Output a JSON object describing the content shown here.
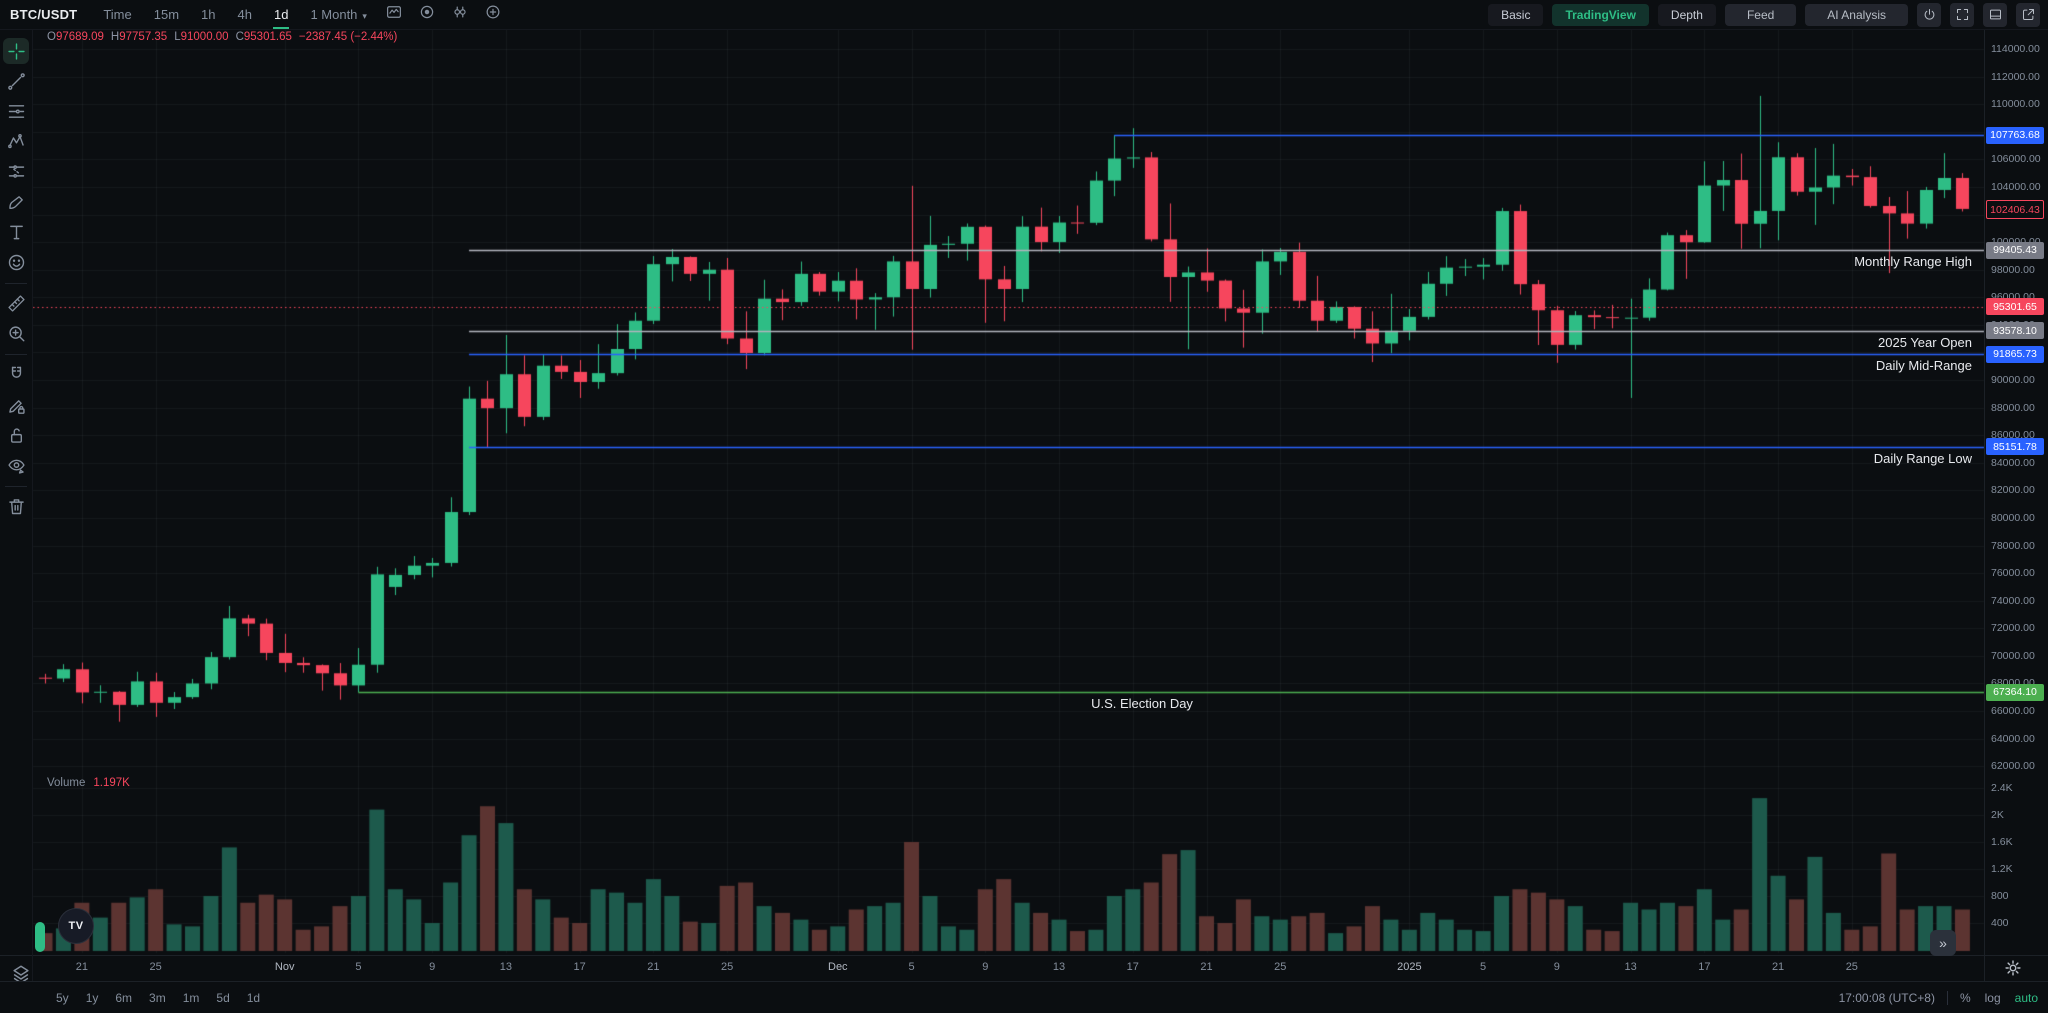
{
  "topbar": {
    "symbol": "BTC/USDT",
    "timeframes": [
      "Time",
      "15m",
      "1h",
      "4h",
      "1d",
      "1 Month"
    ],
    "active_timeframe": "1d",
    "tool_icons": [
      "template-icon",
      "target-icon",
      "candles-icon",
      "plus-circle-icon"
    ],
    "view_tabs": [
      "Basic",
      "TradingView",
      "Depth"
    ],
    "active_view": "TradingView",
    "buttons": [
      "Feed",
      "AI Analysis"
    ],
    "window_icons": [
      "power-icon",
      "fullscreen-icon",
      "bottom-panel-icon",
      "share-icon"
    ]
  },
  "legend": {
    "ohlc": [
      {
        "k": "O",
        "v": "97689.09"
      },
      {
        "k": "H",
        "v": "97757.35"
      },
      {
        "k": "L",
        "v": "91000.00"
      },
      {
        "k": "C",
        "v": "95301.65"
      }
    ],
    "change": "−2387.45 (−2.44%)"
  },
  "volume_legend": {
    "label": "Volume",
    "value": "1.197K"
  },
  "sidebar": {
    "tools": [
      "crosshair-icon",
      "trendline-icon",
      "fib-retracement-icon",
      "xabcd-pattern-icon",
      "projection-icon",
      "brush-icon",
      "text-icon",
      "emoji-icon",
      "divider",
      "ruler-icon",
      "zoom-in-icon",
      "divider",
      "magnet-icon",
      "draw-lock-icon",
      "lock-icon",
      "hide-drawings-icon",
      "divider",
      "trash-icon"
    ],
    "active_tool": "crosshair-icon"
  },
  "chart_data": {
    "type": "candlestick",
    "title": "BTC/USDT 1d candlestick chart with volume",
    "symbol": "BTC/USDT",
    "interval": "1d",
    "up_color": "#2EBD85",
    "down_color": "#F6465D",
    "vol_up_color": "#1D5A4C",
    "vol_down_color": "#5C3431",
    "y_axis": {
      "min": 62000,
      "max": 114000,
      "step": 2000,
      "scale": "linear",
      "side": "right"
    },
    "volume_axis_ticks": [
      400,
      800,
      1200,
      1600,
      2000,
      2400
    ],
    "grid": true,
    "time_ticks": [
      {
        "i": 2,
        "l": "21"
      },
      {
        "i": 6,
        "l": "25"
      },
      {
        "i": 13,
        "l": "Nov",
        "month": true
      },
      {
        "i": 17,
        "l": "5"
      },
      {
        "i": 21,
        "l": "9"
      },
      {
        "i": 25,
        "l": "13"
      },
      {
        "i": 29,
        "l": "17"
      },
      {
        "i": 33,
        "l": "21"
      },
      {
        "i": 37,
        "l": "25"
      },
      {
        "i": 43,
        "l": "Dec",
        "month": true
      },
      {
        "i": 47,
        "l": "5"
      },
      {
        "i": 51,
        "l": "9"
      },
      {
        "i": 55,
        "l": "13"
      },
      {
        "i": 59,
        "l": "17"
      },
      {
        "i": 63,
        "l": "21"
      },
      {
        "i": 67,
        "l": "25"
      },
      {
        "i": 74,
        "l": "2025",
        "month": true
      },
      {
        "i": 78,
        "l": "5"
      },
      {
        "i": 82,
        "l": "9"
      },
      {
        "i": 86,
        "l": "13"
      },
      {
        "i": 90,
        "l": "17"
      },
      {
        "i": 94,
        "l": "21"
      },
      {
        "i": 98,
        "l": "25"
      }
    ],
    "candles": [
      [
        68420,
        68700,
        68000,
        68360
      ],
      [
        68360,
        69400,
        68100,
        69030
      ],
      [
        69030,
        69520,
        66560,
        67350
      ],
      [
        67350,
        67870,
        66600,
        67400
      ],
      [
        67400,
        67450,
        65230,
        66450
      ],
      [
        66450,
        68850,
        66300,
        68150
      ],
      [
        68150,
        68780,
        65580,
        66600
      ],
      [
        66600,
        67380,
        66150,
        67010
      ],
      [
        67010,
        68330,
        66880,
        68000
      ],
      [
        68000,
        70280,
        67580,
        69910
      ],
      [
        69910,
        73620,
        69740,
        72720
      ],
      [
        72720,
        72980,
        71430,
        72340
      ],
      [
        72340,
        72700,
        69690,
        70215
      ],
      [
        70215,
        71600,
        68820,
        69490
      ],
      [
        69490,
        69900,
        68780,
        69330
      ],
      [
        69330,
        69380,
        67480,
        68740
      ],
      [
        68740,
        69480,
        66830,
        67860
      ],
      [
        67860,
        70570,
        67360,
        69360
      ],
      [
        69360,
        76460,
        68780,
        75910
      ],
      [
        75000,
        76350,
        74410,
        75870
      ],
      [
        75870,
        77240,
        75560,
        76540
      ],
      [
        76540,
        77100,
        75690,
        76740
      ],
      [
        76740,
        81500,
        76480,
        80430
      ],
      [
        80430,
        89530,
        80210,
        88650
      ],
      [
        88650,
        89940,
        85070,
        87960
      ],
      [
        87960,
        93265,
        86140,
        90420
      ],
      [
        90420,
        91790,
        86650,
        87330
      ],
      [
        87330,
        91850,
        87100,
        91040
      ],
      [
        91040,
        91780,
        90080,
        90590
      ],
      [
        90590,
        91450,
        88700,
        89860
      ],
      [
        89860,
        92600,
        89370,
        90500
      ],
      [
        90500,
        94050,
        90330,
        92250
      ],
      [
        92250,
        94900,
        91500,
        94300
      ],
      [
        94300,
        98990,
        94060,
        98400
      ],
      [
        98400,
        99500,
        97150,
        98920
      ],
      [
        98920,
        98960,
        97180,
        97700
      ],
      [
        97700,
        98560,
        95750,
        98000
      ],
      [
        98000,
        98850,
        92600,
        93010
      ],
      [
        93010,
        94980,
        90790,
        91960
      ],
      [
        91960,
        97270,
        91790,
        95900
      ],
      [
        95900,
        96570,
        94340,
        95650
      ],
      [
        95650,
        98590,
        95380,
        97700
      ],
      [
        97700,
        97830,
        96120,
        96410
      ],
      [
        96410,
        97830,
        95700,
        97200
      ],
      [
        97200,
        98100,
        94400,
        95840
      ],
      [
        95840,
        96300,
        93640,
        96000
      ],
      [
        96000,
        99000,
        94600,
        98600
      ],
      [
        98600,
        104080,
        92200,
        96600
      ],
      [
        96600,
        101900,
        95980,
        99800
      ],
      [
        99800,
        100440,
        98850,
        99880
      ],
      [
        99880,
        101350,
        98660,
        101110
      ],
      [
        101110,
        101200,
        94150,
        97300
      ],
      [
        97300,
        98270,
        94260,
        96600
      ],
      [
        96600,
        101880,
        95650,
        101120
      ],
      [
        101120,
        102500,
        99330,
        100000
      ],
      [
        100000,
        101890,
        99210,
        101420
      ],
      [
        101420,
        102650,
        100600,
        101400
      ],
      [
        101400,
        105120,
        101230,
        104460
      ],
      [
        104460,
        107763,
        103330,
        106060
      ],
      [
        106060,
        108260,
        105380,
        106140
      ],
      [
        106140,
        106530,
        100050,
        100200
      ],
      [
        100200,
        102800,
        95670,
        97470
      ],
      [
        97470,
        98230,
        92230,
        97800
      ],
      [
        97800,
        99540,
        96400,
        97210
      ],
      [
        97210,
        97290,
        94250,
        95190
      ],
      [
        95190,
        96540,
        92350,
        94880
      ],
      [
        94880,
        99470,
        93360,
        98600
      ],
      [
        98600,
        99570,
        97620,
        99290
      ],
      [
        99290,
        99960,
        95230,
        95750
      ],
      [
        95750,
        97550,
        93510,
        94300
      ],
      [
        94300,
        95700,
        94140,
        95300
      ],
      [
        95300,
        95340,
        93010,
        93720
      ],
      [
        93720,
        94980,
        91300,
        92650
      ],
      [
        92650,
        96250,
        91950,
        93570
      ],
      [
        93570,
        95150,
        92880,
        94580
      ],
      [
        94580,
        97840,
        94390,
        96980
      ],
      [
        96980,
        98980,
        96100,
        98150
      ],
      [
        98150,
        98770,
        97540,
        98220
      ],
      [
        98220,
        98840,
        97290,
        98360
      ],
      [
        98360,
        102480,
        97920,
        102250
      ],
      [
        102250,
        102720,
        96200,
        96950
      ],
      [
        96950,
        97250,
        92540,
        95060
      ],
      [
        95060,
        95380,
        91250,
        92550
      ],
      [
        92550,
        95000,
        92210,
        94700
      ],
      [
        94700,
        95050,
        93690,
        94560
      ],
      [
        94560,
        95450,
        93750,
        94500
      ],
      [
        94500,
        95900,
        88700,
        94520
      ],
      [
        94520,
        97371,
        94300,
        96560
      ],
      [
        96560,
        100690,
        96500,
        100500
      ],
      [
        100500,
        100870,
        97336,
        99990
      ],
      [
        99990,
        105860,
        99950,
        104100
      ],
      [
        104100,
        105880,
        102260,
        104500
      ],
      [
        104500,
        106420,
        99520,
        101330
      ],
      [
        101330,
        110600,
        99550,
        102260
      ],
      [
        102260,
        107240,
        100130,
        106150
      ],
      [
        106150,
        106440,
        103370,
        103650
      ],
      [
        103650,
        106820,
        101250,
        103960
      ],
      [
        103960,
        107120,
        102750,
        104820
      ],
      [
        104820,
        105300,
        104100,
        104710
      ],
      [
        104710,
        105500,
        102500,
        102620
      ],
      [
        102620,
        103270,
        97750,
        102080
      ],
      [
        102080,
        103700,
        100250,
        101340
      ],
      [
        101340,
        104000,
        100980,
        103780
      ],
      [
        103780,
        106450,
        103190,
        104650
      ],
      [
        104650,
        105000,
        102220,
        102406
      ]
    ],
    "volumes": [
      250,
      320,
      700,
      480,
      700,
      780,
      900,
      380,
      350,
      800,
      1520,
      700,
      820,
      750,
      300,
      350,
      650,
      800,
      2080,
      900,
      750,
      400,
      1000,
      1700,
      2130,
      1880,
      900,
      750,
      480,
      400,
      900,
      850,
      700,
      1050,
      800,
      420,
      400,
      950,
      1000,
      650,
      550,
      450,
      300,
      350,
      600,
      650,
      700,
      1600,
      800,
      350,
      300,
      900,
      1050,
      700,
      550,
      450,
      280,
      300,
      800,
      900,
      1000,
      1420,
      1480,
      500,
      400,
      750,
      500,
      450,
      500,
      550,
      250,
      350,
      650,
      450,
      300,
      550,
      450,
      300,
      280,
      800,
      900,
      850,
      750,
      650,
      300,
      280,
      700,
      600,
      700,
      650,
      900,
      450,
      600,
      2250,
      1100,
      750,
      1380,
      550,
      300,
      350,
      1430,
      600,
      650,
      650,
      600
    ],
    "current_price_line": {
      "price": 95301.65,
      "color": "#F6465D",
      "style": "dotted"
    },
    "drawings": [
      {
        "name": "ath-line",
        "price": 107763.68,
        "color": "#2962FF",
        "from_index": 58,
        "label": ""
      },
      {
        "name": "monthly-range-high-line",
        "price": 99405.43,
        "color": "#B2B5BE",
        "from_index": 23,
        "label": "Monthly Range High",
        "label_align": "right"
      },
      {
        "name": "year-open-line",
        "price": 93578.1,
        "color": "#B2B5BE",
        "from_index": 23,
        "label": "2025 Year Open",
        "label_align": "right"
      },
      {
        "name": "daily-mid-range-line",
        "price": 91865.73,
        "color": "#2962FF",
        "from_index": 23,
        "label": "Daily Mid-Range",
        "label_align": "right"
      },
      {
        "name": "daily-range-low-line",
        "price": 85151.78,
        "color": "#2962FF",
        "from_index": 23,
        "label": "Daily Range Low",
        "label_align": "right"
      },
      {
        "name": "election-day-line",
        "price": 67364.1,
        "color": "#4CAF50",
        "from_index": 17,
        "label": "U.S. Election Day",
        "label_align": "center",
        "label_index": 59.5
      }
    ],
    "price_badges": [
      {
        "text": "107763.68",
        "price": 107763.68,
        "bg": "#2962FF",
        "style": "solid"
      },
      {
        "text": "102406.43",
        "price": 102406.43,
        "bg": "",
        "style": "outline"
      },
      {
        "text": "99405.43",
        "price": 99405.43,
        "bg": "#787B86",
        "style": "solid"
      },
      {
        "text": "95301.65",
        "price": 95301.65,
        "bg": "#F6465D",
        "style": "solid"
      },
      {
        "text": "93578.10",
        "price": 93578.1,
        "bg": "#787B86",
        "style": "solid"
      },
      {
        "text": "91865.73",
        "price": 91865.73,
        "bg": "#2962FF",
        "style": "solid"
      },
      {
        "text": "85151.78",
        "price": 85151.78,
        "bg": "#2962FF",
        "style": "solid"
      },
      {
        "text": "67364.10",
        "price": 67364.1,
        "bg": "#4CAF50",
        "style": "solid"
      }
    ]
  },
  "bottom_bar": {
    "ranges": [
      "5y",
      "1y",
      "6m",
      "3m",
      "1m",
      "5d",
      "1d"
    ],
    "clock": "17:00:08 (UTC+8)",
    "scale_options": [
      "%",
      "log",
      "auto"
    ],
    "active_scale": "auto"
  },
  "watermark": "TV",
  "collapse_glyph": "»"
}
